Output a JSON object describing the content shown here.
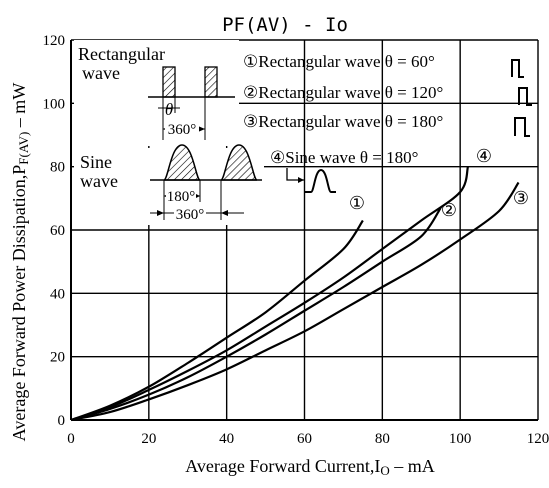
{
  "chart_data": {
    "type": "line",
    "title": "PF(AV) - Io",
    "xlabel": "Average Forward Current,I",
    "xlabel_sub": "O",
    "xlabel_unit": " – mA",
    "ylabel": "Average Forward Power Dissipation,P",
    "ylabel_sub": "F(AV)",
    "ylabel_unit": " – mW",
    "xlim": [
      0,
      120
    ],
    "ylim": [
      0,
      120
    ],
    "xticks": [
      "0",
      "20",
      "40",
      "60",
      "80",
      "100",
      "120"
    ],
    "yticks": [
      "0",
      "20",
      "40",
      "60",
      "80",
      "100",
      "120"
    ],
    "grid": true,
    "series": [
      {
        "marker": "①",
        "x": [
          0,
          10,
          20,
          30,
          40,
          50,
          60,
          70,
          75
        ],
        "y": [
          0,
          4.5,
          10.5,
          18,
          26,
          34,
          44,
          54,
          63
        ]
      },
      {
        "marker": "②",
        "x": [
          0,
          10,
          20,
          30,
          40,
          50,
          60,
          70,
          80,
          90,
          95
        ],
        "y": [
          0,
          3.5,
          8,
          13.5,
          20,
          27,
          34.5,
          42,
          50,
          58,
          67
        ]
      },
      {
        "marker": "③",
        "x": [
          0,
          10,
          20,
          30,
          40,
          50,
          60,
          70,
          80,
          90,
          100,
          110,
          115
        ],
        "y": [
          0,
          2.5,
          6.5,
          11,
          16,
          22,
          28,
          35,
          42,
          49,
          57,
          66,
          75
        ]
      },
      {
        "marker": "④",
        "x": [
          0,
          10,
          20,
          30,
          40,
          50,
          60,
          70,
          80,
          90,
          100,
          102
        ],
        "y": [
          0,
          4,
          9.5,
          15.5,
          22,
          29.5,
          37,
          45,
          54,
          63,
          72,
          80
        ]
      }
    ],
    "series_markers": [
      "①",
      "②",
      "③",
      "④"
    ],
    "legend": [
      {
        "marker": "①",
        "text": "Rectangular wave θ = 60°"
      },
      {
        "marker": "②",
        "text": "Rectangular wave θ = 120°"
      },
      {
        "marker": "③",
        "text": "Rectangular wave θ = 180°"
      },
      {
        "marker": "④",
        "text": "Sine wave θ = 180°"
      }
    ],
    "inset_labels": {
      "rect_title_1": "Rectangular",
      "rect_title_2": "wave",
      "rect_theta": "θ",
      "rect_period": "360°",
      "sine_title_1": "Sine",
      "sine_title_2": "wave",
      "sine_half": "180°",
      "sine_period": "360°"
    }
  }
}
